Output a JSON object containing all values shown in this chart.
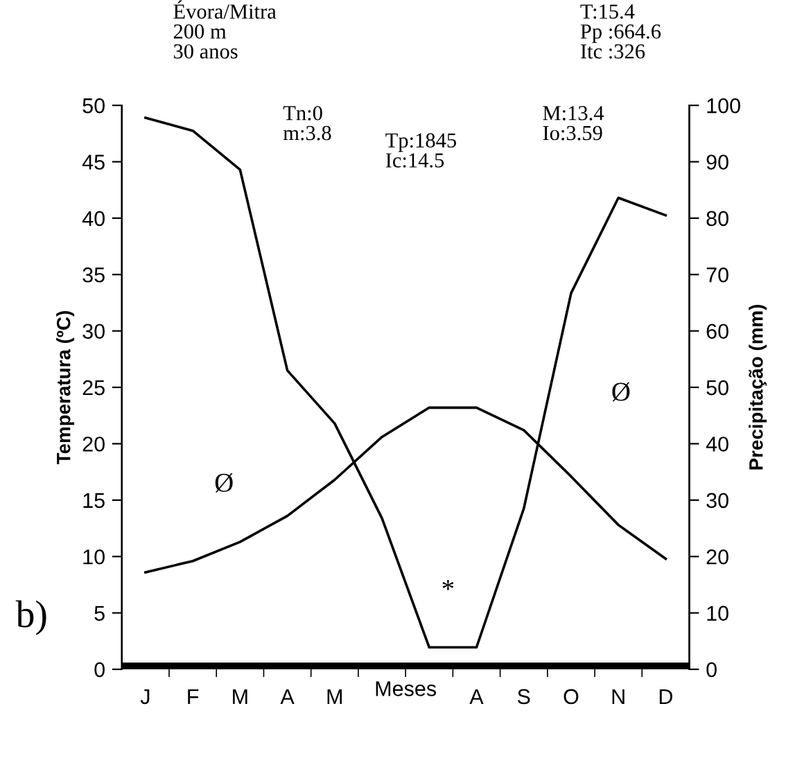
{
  "chart_data": {
    "type": "line",
    "categories": [
      "J",
      "F",
      "M",
      "A",
      "M",
      null,
      null,
      "A",
      "S",
      "O",
      "N",
      "D"
    ],
    "xlabel": "Meses",
    "ylabel": "Temperatura (ºC)",
    "y2label": "Precipitação (mm)",
    "series": [
      {
        "color": "#000000",
        "values": [
          8.6,
          9.6,
          11.3,
          13.6,
          16.8,
          20.6,
          23.2,
          23.2,
          21.2,
          17.1,
          12.8,
          9.8
        ]
      },
      {
        "color": "#000000",
        "axis": "y2",
        "values": [
          97.8,
          95.5,
          88.6,
          53,
          43.6,
          26.8,
          3.9,
          3.9,
          28.5,
          66.7,
          83.6,
          80.5
        ]
      }
    ],
    "ylim": [
      0,
      50
    ],
    "yticks": [
      0,
      5,
      10,
      15,
      20,
      25,
      30,
      35,
      40,
      45,
      50
    ],
    "y2lim": [
      0,
      100
    ],
    "y2ticks": [
      0,
      10,
      20,
      30,
      40,
      50,
      60,
      70,
      80,
      90,
      100
    ],
    "bands": [
      {
        "axis": "y",
        "from": 0,
        "to": 0.6,
        "color": "#000000"
      }
    ],
    "annotations": [
      "Évora/Mitra\n200 m\n30 anos",
      "T:15.4\nPp :664.6\nItc :326",
      "Tn:0\nm:3.8",
      "Tp:1845\nIc:14.5",
      "M:13.4\nIo:3.59",
      "Ø",
      "Ø",
      "*",
      "b)"
    ],
    "grid": false,
    "legend": false,
    "marker": "none",
    "line_style": "solid"
  }
}
